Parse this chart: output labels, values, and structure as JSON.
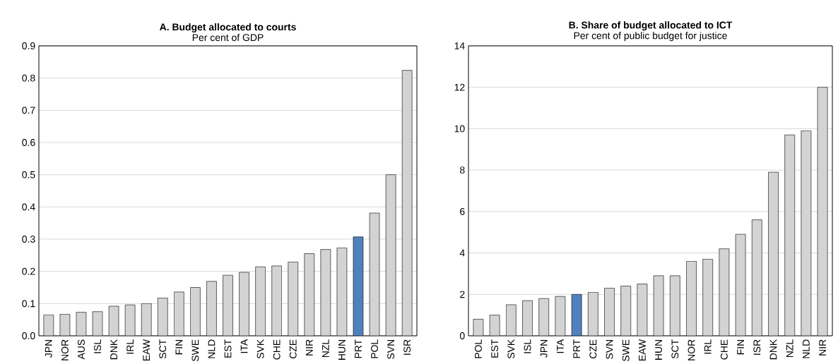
{
  "chart_data": [
    {
      "type": "bar",
      "title": "A. Budget allocated to courts",
      "subtitle": "Per cent of GDP",
      "categories": [
        "JPN",
        "NOR",
        "AUS",
        "ISL",
        "DNK",
        "IRL",
        "EAW",
        "SCT",
        "FIN",
        "SWE",
        "NLD",
        "EST",
        "ITA",
        "SVK",
        "CHE",
        "CZE",
        "NIR",
        "NZL",
        "HUN",
        "PRT",
        "POL",
        "SVN",
        "ISR"
      ],
      "values": [
        0.065,
        0.067,
        0.073,
        0.075,
        0.092,
        0.096,
        0.1,
        0.117,
        0.136,
        0.15,
        0.169,
        0.188,
        0.197,
        0.214,
        0.217,
        0.229,
        0.255,
        0.268,
        0.273,
        0.307,
        0.381,
        0.5,
        0.824
      ],
      "colors": [
        "#d3d3d3",
        "#d3d3d3",
        "#d3d3d3",
        "#d3d3d3",
        "#d3d3d3",
        "#d3d3d3",
        "#d3d3d3",
        "#d3d3d3",
        "#d3d3d3",
        "#d3d3d3",
        "#d3d3d3",
        "#d3d3d3",
        "#d3d3d3",
        "#d3d3d3",
        "#d3d3d3",
        "#d3d3d3",
        "#d3d3d3",
        "#d3d3d3",
        "#d3d3d3",
        "#4f81bd",
        "#d3d3d3",
        "#d3d3d3",
        "#d3d3d3"
      ],
      "ylim": [
        0,
        0.9
      ],
      "yticks": [
        {
          "value": 0,
          "label": "0.0"
        },
        0.1,
        0.2,
        0.3,
        0.4,
        0.5,
        0.6,
        0.7,
        0.8,
        0.9
      ],
      "grid": "y"
    },
    {
      "type": "bar",
      "title": "B. Share of budget allocated to ICT",
      "subtitle": "Per cent of public budget for justice",
      "categories": [
        "POL",
        "EST",
        "SVK",
        "ISL",
        "JPN",
        "ITA",
        "PRT",
        "CZE",
        "SVN",
        "SWE",
        "EAW",
        "HUN",
        "SCT",
        "NOR",
        "IRL",
        "CHE",
        "FIN",
        "ISR",
        "DNK",
        "NZL",
        "NLD",
        "NIR"
      ],
      "values": [
        0.8,
        1.0,
        1.5,
        1.7,
        1.8,
        1.9,
        2.0,
        2.1,
        2.3,
        2.4,
        2.5,
        2.9,
        2.9,
        3.6,
        3.7,
        4.2,
        4.9,
        5.6,
        7.9,
        9.7,
        9.9,
        12.0
      ],
      "colors": [
        "#d3d3d3",
        "#d3d3d3",
        "#d3d3d3",
        "#d3d3d3",
        "#d3d3d3",
        "#d3d3d3",
        "#4f81bd",
        "#d3d3d3",
        "#d3d3d3",
        "#d3d3d3",
        "#d3d3d3",
        "#d3d3d3",
        "#d3d3d3",
        "#d3d3d3",
        "#d3d3d3",
        "#d3d3d3",
        "#d3d3d3",
        "#d3d3d3",
        "#d3d3d3",
        "#d3d3d3",
        "#d3d3d3",
        "#d3d3d3"
      ],
      "ylim": [
        0,
        14
      ],
      "yticks": [
        0,
        2,
        4,
        6,
        8,
        10,
        12,
        14
      ],
      "grid": "y"
    }
  ]
}
